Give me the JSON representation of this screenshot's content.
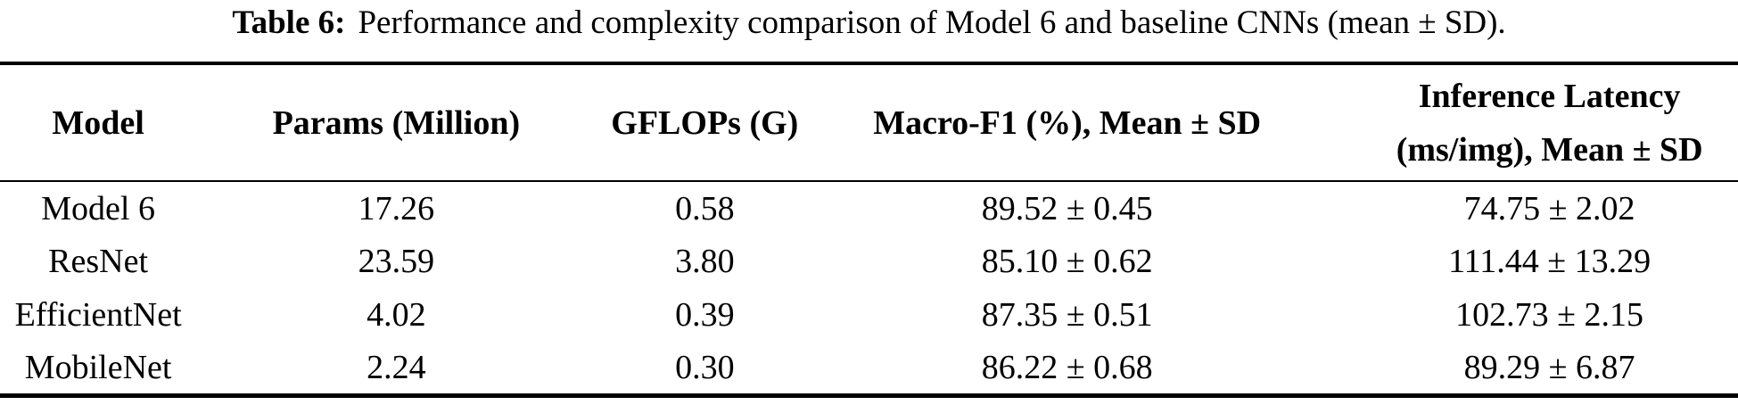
{
  "colors": {
    "text": "#000000",
    "background": "#ffffff",
    "rule": "#000000"
  },
  "caption": {
    "label": "Table 6:",
    "text": "Performance and complexity comparison of Model 6 and baseline CNNs (mean ± SD)."
  },
  "table": {
    "headers": [
      {
        "line1": "Model",
        "line2": ""
      },
      {
        "line1": "Params (Million)",
        "line2": ""
      },
      {
        "line1": "GFLOPs (G)",
        "line2": ""
      },
      {
        "line1": "Macro-F1 (%), Mean ± SD",
        "line2": ""
      },
      {
        "line1": "Inference Latency",
        "line2": "(ms/img), Mean ± SD"
      }
    ],
    "rows": [
      [
        "Model 6",
        "17.26",
        "0.58",
        "89.52 ± 0.45",
        "74.75 ± 2.02"
      ],
      [
        "ResNet",
        "23.59",
        "3.80",
        "85.10 ± 0.62",
        "111.44 ± 13.29"
      ],
      [
        "EfficientNet",
        "4.02",
        "0.39",
        "87.35 ± 0.51",
        "102.73 ± 2.15"
      ],
      [
        "MobileNet",
        "2.24",
        "0.30",
        "86.22 ± 0.68",
        "89.29 ± 6.87"
      ]
    ]
  }
}
